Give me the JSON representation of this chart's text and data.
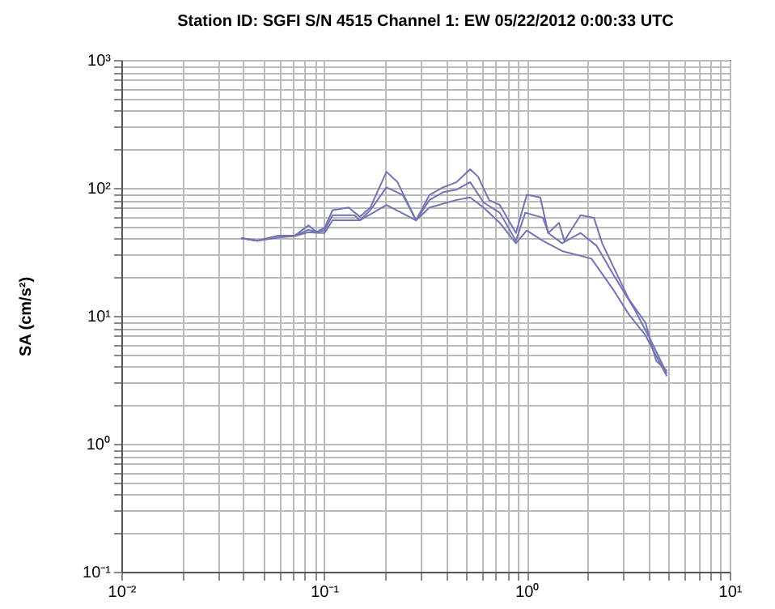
{
  "chart_data": {
    "type": "line",
    "title": "Station ID: SGFI S/N 4515  Channel 1: EW  05/22/2012 0:00:33 UTC",
    "ylabel": "SA (cm/s²)",
    "log": "xy",
    "grid": true,
    "xlim": [
      0.01,
      10
    ],
    "ylim": [
      0.1,
      1000
    ],
    "xticks": [
      {
        "value": 0.01,
        "label": "10⁻²"
      },
      {
        "value": 0.02,
        "label": null
      },
      {
        "value": 0.03,
        "label": null
      },
      {
        "value": 0.04,
        "label": null
      },
      {
        "value": 0.05,
        "label": null
      },
      {
        "value": 0.06,
        "label": null
      },
      {
        "value": 0.07,
        "label": null
      },
      {
        "value": 0.08,
        "label": null
      },
      {
        "value": 0.09,
        "label": null
      },
      {
        "value": 0.1,
        "label": "10⁻¹"
      },
      {
        "value": 0.2,
        "label": null
      },
      {
        "value": 0.3,
        "label": null
      },
      {
        "value": 0.4,
        "label": null
      },
      {
        "value": 0.5,
        "label": null
      },
      {
        "value": 0.6,
        "label": null
      },
      {
        "value": 0.7,
        "label": null
      },
      {
        "value": 0.8,
        "label": null
      },
      {
        "value": 0.9,
        "label": null
      },
      {
        "value": 1,
        "label": "10⁰"
      },
      {
        "value": 2,
        "label": null
      },
      {
        "value": 3,
        "label": null
      },
      {
        "value": 4,
        "label": null
      },
      {
        "value": 5,
        "label": null
      },
      {
        "value": 6,
        "label": null
      },
      {
        "value": 7,
        "label": null
      },
      {
        "value": 8,
        "label": null
      },
      {
        "value": 9,
        "label": null
      },
      {
        "value": 10,
        "label": "10¹"
      }
    ],
    "yticks": [
      {
        "value": 0.1,
        "label": "10⁻¹"
      },
      {
        "value": 0.2,
        "label": null
      },
      {
        "value": 0.3,
        "label": null
      },
      {
        "value": 0.4,
        "label": null
      },
      {
        "value": 0.5,
        "label": null
      },
      {
        "value": 0.6,
        "label": null
      },
      {
        "value": 0.7,
        "label": null
      },
      {
        "value": 0.8,
        "label": null
      },
      {
        "value": 0.9,
        "label": null
      },
      {
        "value": 1,
        "label": "10⁰"
      },
      {
        "value": 2,
        "label": null
      },
      {
        "value": 3,
        "label": null
      },
      {
        "value": 4,
        "label": null
      },
      {
        "value": 5,
        "label": null
      },
      {
        "value": 6,
        "label": null
      },
      {
        "value": 7,
        "label": null
      },
      {
        "value": 8,
        "label": null
      },
      {
        "value": 9,
        "label": null
      },
      {
        "value": 10,
        "label": "10¹"
      },
      {
        "value": 20,
        "label": null
      },
      {
        "value": 30,
        "label": null
      },
      {
        "value": 40,
        "label": null
      },
      {
        "value": 50,
        "label": null
      },
      {
        "value": 60,
        "label": null
      },
      {
        "value": 70,
        "label": null
      },
      {
        "value": 80,
        "label": null
      },
      {
        "value": 90,
        "label": null
      },
      {
        "value": 100,
        "label": "10²"
      },
      {
        "value": 200,
        "label": null
      },
      {
        "value": 300,
        "label": null
      },
      {
        "value": 400,
        "label": null
      },
      {
        "value": 500,
        "label": null
      },
      {
        "value": 600,
        "label": null
      },
      {
        "value": 700,
        "label": null
      },
      {
        "value": 800,
        "label": null
      },
      {
        "value": 900,
        "label": null
      },
      {
        "value": 1000,
        "label": "10³"
      }
    ],
    "series": [
      {
        "color": "#7474b4",
        "x": [
          0.0389,
          0.0468,
          0.0598,
          0.0718,
          0.0836,
          0.0917,
          0.1005,
          0.11,
          0.132,
          0.15,
          0.169,
          0.203,
          0.23,
          0.284,
          0.331,
          0.386,
          0.45,
          0.525,
          0.575,
          0.65,
          0.735,
          0.883,
          0.998,
          1.164,
          1.274,
          1.44,
          1.53,
          1.84,
          2.14,
          2.35,
          3.19,
          3.84,
          4.34,
          4.9
        ],
        "values": [
          40.5,
          38.6,
          42.4,
          42.4,
          50.9,
          45.2,
          48.6,
          67.0,
          70.2,
          59.5,
          70.2,
          133.6,
          111,
          55.8,
          88.3,
          101,
          111,
          140,
          122,
          80.5,
          73.5,
          44.4,
          88.3,
          84.3,
          44.4,
          53.3,
          38.6,
          61.1,
          58.4,
          36.9,
          13.4,
          8.87,
          4.45,
          3.71
        ]
      },
      {
        "color": "#7474b4",
        "x": [
          0.0389,
          0.0468,
          0.0598,
          0.0718,
          0.0836,
          0.0917,
          0.1005,
          0.11,
          0.141,
          0.15,
          0.169,
          0.203,
          0.244,
          0.284,
          0.331,
          0.386,
          0.45,
          0.525,
          0.611,
          0.735,
          0.883,
          0.982,
          1.2,
          1.274,
          1.49,
          1.84,
          2.21,
          2.66,
          3.4,
          4.08,
          4.9
        ],
        "values": [
          40.5,
          38.6,
          42.4,
          42.4,
          47,
          45.2,
          46.5,
          61.1,
          61.1,
          55.8,
          67.0,
          101,
          88.3,
          55.8,
          80.5,
          92.5,
          96.8,
          111,
          76.9,
          64.0,
          38.6,
          64.0,
          58.4,
          44.4,
          36.9,
          44.4,
          35.2,
          21.2,
          11.2,
          6.43,
          3.54
        ]
      },
      {
        "color": "#7474b4",
        "x": [
          0.0389,
          0.0468,
          0.0598,
          0.0718,
          0.0836,
          0.0917,
          0.1005,
          0.11,
          0.15,
          0.203,
          0.284,
          0.331,
          0.45,
          0.525,
          0.611,
          0.735,
          0.883,
          0.998,
          1.2,
          1.49,
          2.08,
          2.66,
          3.19,
          3.84,
          4.9
        ],
        "values": [
          40.5,
          38.6,
          41,
          42,
          45,
          44.5,
          44.4,
          55.8,
          55.8,
          73.5,
          55.8,
          70.2,
          80.5,
          84.3,
          70.2,
          53.3,
          36.9,
          46.5,
          38.6,
          32.1,
          28.0,
          16.1,
          10.2,
          7.05,
          3.38
        ]
      }
    ]
  }
}
